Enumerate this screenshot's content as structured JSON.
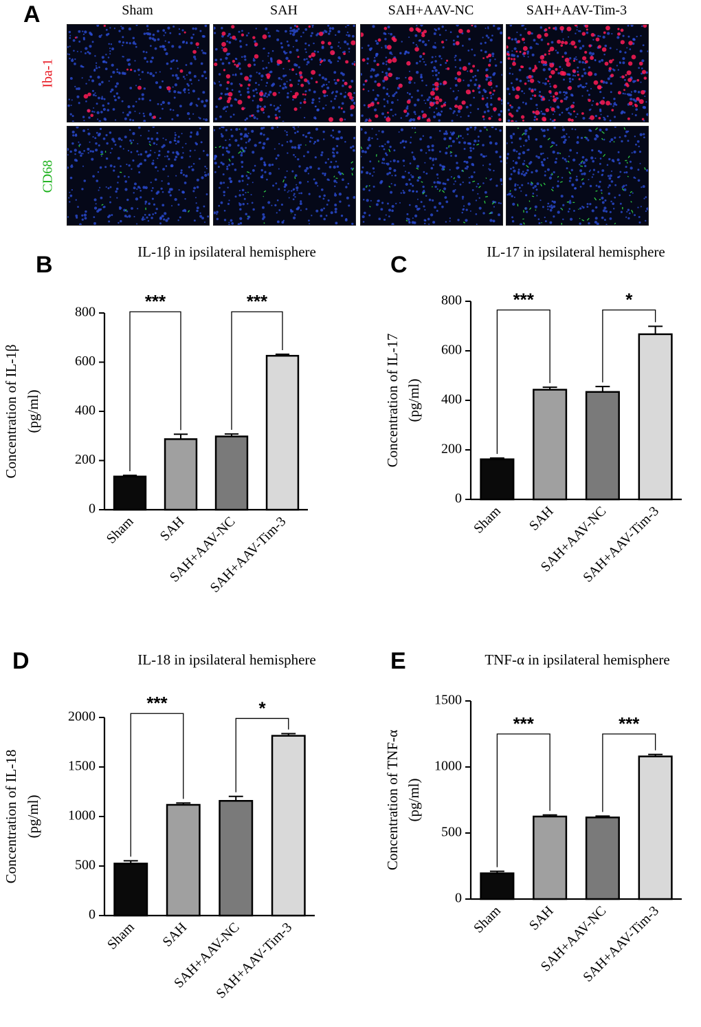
{
  "panel_a": {
    "letter": "A",
    "columns": [
      "Sham",
      "SAH",
      "SAH+AAV-NC",
      "SAH+AAV-Tim-3"
    ],
    "rows": [
      {
        "label": "Iba-1",
        "color": "#e8141e"
      },
      {
        "label": "CD68",
        "color": "#19b019"
      }
    ]
  },
  "chart_data": [
    {
      "panel": "B",
      "type": "bar",
      "title": "IL-1β in ipsilateral hemisphere",
      "ylabel": [
        "Concentration of IL-1β",
        "(pg/ml)"
      ],
      "categories": [
        "Sham",
        "SAH",
        "SAH+AAV-NC",
        "SAH+AAV-Tim-3"
      ],
      "values": [
        135,
        287,
        298,
        626
      ],
      "errors": [
        5,
        20,
        10,
        6
      ],
      "ylim": [
        0,
        800
      ],
      "yticks": [
        0,
        200,
        400,
        600,
        800
      ],
      "bar_colors": [
        "#0a0a0a",
        "#a0a0a0",
        "#7a7a7a",
        "#d9d9d9"
      ],
      "significance": [
        {
          "from": 0,
          "to": 1,
          "label": "***",
          "y": 805
        },
        {
          "from": 2,
          "to": 3,
          "label": "***",
          "y": 805
        }
      ]
    },
    {
      "panel": "C",
      "type": "bar",
      "title": "IL-17 in ipsilateral hemisphere",
      "ylabel": [
        "Concentration of IL-17",
        "(pg/ml)"
      ],
      "categories": [
        "Sham",
        "SAH",
        "SAH+AAV-NC",
        "SAH+AAV-Tim-3"
      ],
      "values": [
        162,
        443,
        434,
        667
      ],
      "errors": [
        5,
        10,
        22,
        32
      ],
      "ylim": [
        0,
        800
      ],
      "yticks": [
        0,
        200,
        400,
        600,
        800
      ],
      "bar_colors": [
        "#0a0a0a",
        "#a0a0a0",
        "#7a7a7a",
        "#d9d9d9"
      ],
      "significance": [
        {
          "from": 0,
          "to": 1,
          "label": "***",
          "y": 765
        },
        {
          "from": 2,
          "to": 3,
          "label": "*",
          "y": 765
        }
      ]
    },
    {
      "panel": "D",
      "type": "bar",
      "title": "IL-18 in ipsilateral hemisphere",
      "ylabel": [
        "Concentration of IL-18",
        "(pg/ml)"
      ],
      "categories": [
        "Sham",
        "SAH",
        "SAH+AAV-NC",
        "SAH+AAV-Tim-3"
      ],
      "values": [
        525,
        1118,
        1158,
        1815
      ],
      "errors": [
        28,
        18,
        45,
        22
      ],
      "ylim": [
        0,
        2000
      ],
      "yticks": [
        0,
        500,
        1000,
        1500,
        2000
      ],
      "bar_colors": [
        "#0a0a0a",
        "#a0a0a0",
        "#7a7a7a",
        "#d9d9d9"
      ],
      "significance": [
        {
          "from": 0,
          "to": 1,
          "label": "***",
          "y": 2040
        },
        {
          "from": 2,
          "to": 3,
          "label": "*",
          "y": 1990
        }
      ]
    },
    {
      "panel": "E",
      "type": "bar",
      "title": "TNF-α in ipsilateral hemisphere",
      "ylabel": [
        "Concentration of TNF-α",
        "(pg/ml)"
      ],
      "categories": [
        "Sham",
        "SAH",
        "SAH+AAV-NC",
        "SAH+AAV-Tim-3"
      ],
      "values": [
        195,
        625,
        618,
        1080
      ],
      "errors": [
        15,
        12,
        10,
        15
      ],
      "ylim": [
        0,
        1500
      ],
      "yticks": [
        0,
        500,
        1000,
        1500
      ],
      "bar_colors": [
        "#0a0a0a",
        "#a0a0a0",
        "#7a7a7a",
        "#d9d9d9"
      ],
      "significance": [
        {
          "from": 0,
          "to": 1,
          "label": "***",
          "y": 1250
        },
        {
          "from": 2,
          "to": 3,
          "label": "***",
          "y": 1250
        }
      ]
    }
  ]
}
